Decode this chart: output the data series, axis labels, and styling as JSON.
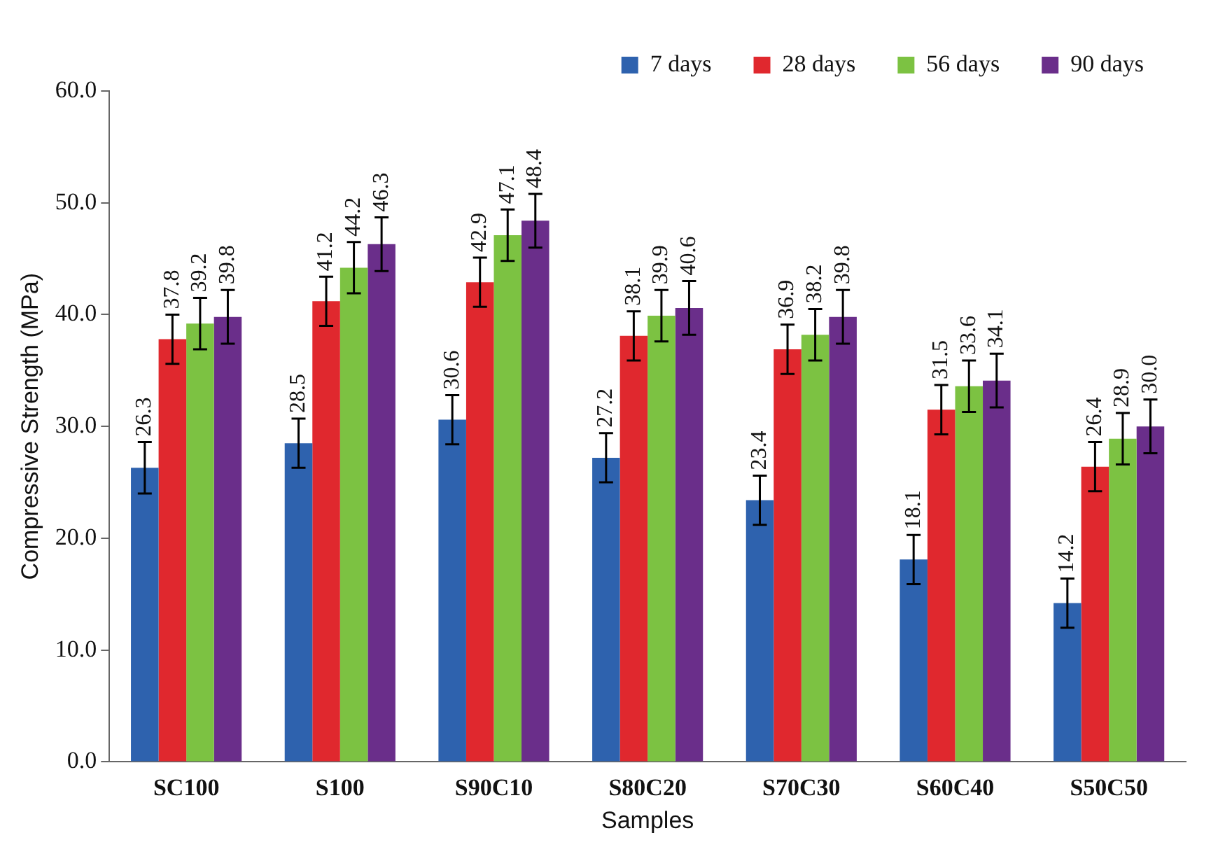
{
  "chart_data": {
    "type": "bar",
    "xlabel": "Samples",
    "ylabel": "Compressive Strength (MPa)",
    "categories": [
      "SC100",
      "S100",
      "S90C10",
      "S80C20",
      "S70C30",
      "S60C40",
      "S50C50"
    ],
    "series": [
      {
        "name": "7 days",
        "color": "#2e62ae",
        "values": [
          26.3,
          28.5,
          30.6,
          27.2,
          23.4,
          18.1,
          14.2
        ],
        "errors": [
          2.3,
          2.2,
          2.2,
          2.2,
          2.2,
          2.2,
          2.2
        ],
        "value_labels": [
          "26.3",
          "28.5",
          "30.6",
          "27.2",
          "23.4",
          "18.1",
          "14.2"
        ]
      },
      {
        "name": "28 days",
        "color": "#e0282e",
        "values": [
          37.8,
          41.2,
          42.9,
          38.1,
          36.9,
          31.5,
          26.4
        ],
        "errors": [
          2.2,
          2.2,
          2.2,
          2.2,
          2.2,
          2.2,
          2.2
        ],
        "value_labels": [
          "37.8",
          "41.2",
          "42.9",
          "38.1",
          "36.9",
          "31.5",
          "26.4"
        ]
      },
      {
        "name": "56 days",
        "color": "#7cc242",
        "values": [
          39.2,
          44.2,
          47.1,
          39.9,
          38.2,
          33.6,
          28.9
        ],
        "errors": [
          2.3,
          2.3,
          2.3,
          2.3,
          2.3,
          2.3,
          2.3
        ],
        "value_labels": [
          "39.2",
          "44.2",
          "47.1",
          "39.9",
          "38.2",
          "33.6",
          "28.9"
        ]
      },
      {
        "name": "90 days",
        "color": "#6a2e8a",
        "values": [
          39.8,
          46.3,
          48.4,
          40.6,
          39.8,
          34.1,
          30.0
        ],
        "errors": [
          2.4,
          2.4,
          2.4,
          2.4,
          2.4,
          2.4,
          2.4
        ],
        "value_labels": [
          "39.8",
          "46.3",
          "48.4",
          "40.6",
          "39.8",
          "34.1",
          "30.0"
        ]
      }
    ],
    "ylim": [
      0,
      60
    ],
    "yticks": [
      {
        "value": 0,
        "label": "0.0"
      },
      {
        "value": 10,
        "label": "10.0"
      },
      {
        "value": 20,
        "label": "20.0"
      },
      {
        "value": 30,
        "label": "30.0"
      },
      {
        "value": 40,
        "label": "40.0"
      },
      {
        "value": 50,
        "label": "50.0"
      },
      {
        "value": 60,
        "label": "60.0"
      }
    ],
    "grid": false,
    "legend": "top right"
  }
}
